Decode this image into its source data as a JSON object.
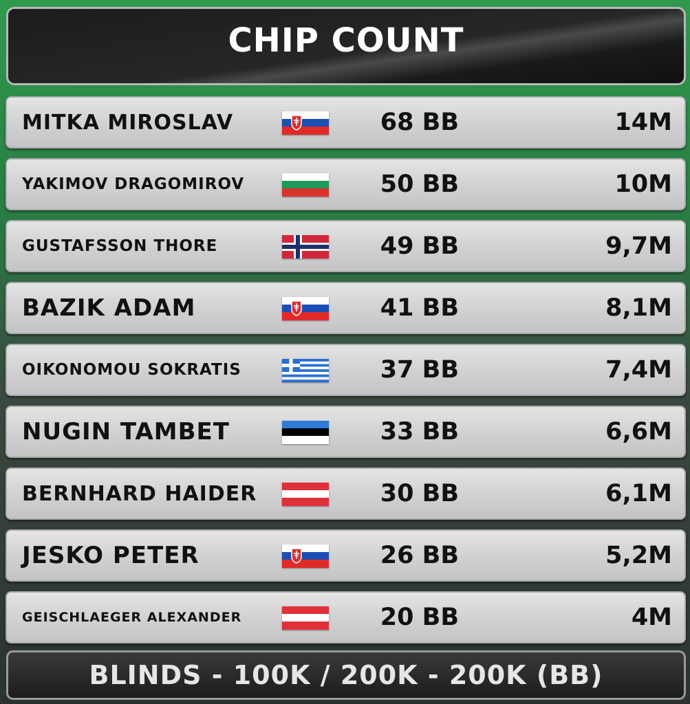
{
  "header": {
    "title": "CHIP COUNT"
  },
  "players": [
    {
      "name": "MITKA MIROSLAV",
      "country": "Slovakia",
      "flag": "flag-sk",
      "bb": "68 BB",
      "chips": "14M"
    },
    {
      "name": "YAKIMOV DRAGOMIROV",
      "country": "Bulgaria",
      "flag": "flag-bg",
      "bb": "50 BB",
      "chips": "10M"
    },
    {
      "name": "GUSTAFSSON THORE",
      "country": "Norway",
      "flag": "flag-no",
      "bb": "49 BB",
      "chips": "9,7M"
    },
    {
      "name": "BAZIK ADAM",
      "country": "Slovakia",
      "flag": "flag-sk",
      "bb": "41 BB",
      "chips": "8,1M"
    },
    {
      "name": "OIKONOMOU SOKRATIS",
      "country": "Greece",
      "flag": "flag-gr",
      "bb": "37 BB",
      "chips": "7,4M"
    },
    {
      "name": "NUGIN TAMBET",
      "country": "Estonia",
      "flag": "flag-ee",
      "bb": "33 BB",
      "chips": "6,6M"
    },
    {
      "name": "BERNHARD HAIDER",
      "country": "Austria",
      "flag": "flag-at",
      "bb": "30 BB",
      "chips": "6,1M"
    },
    {
      "name": "JESKO PETER",
      "country": "Slovakia",
      "flag": "flag-sk",
      "bb": "26 BB",
      "chips": "5,2M"
    },
    {
      "name": "GEISCHLAEGER ALEXANDER",
      "country": "Austria",
      "flag": "flag-at",
      "bb": "20 BB",
      "chips": "4M"
    }
  ],
  "footer": {
    "blinds": "BLINDS - 100K / 200K - 200K (BB)"
  }
}
